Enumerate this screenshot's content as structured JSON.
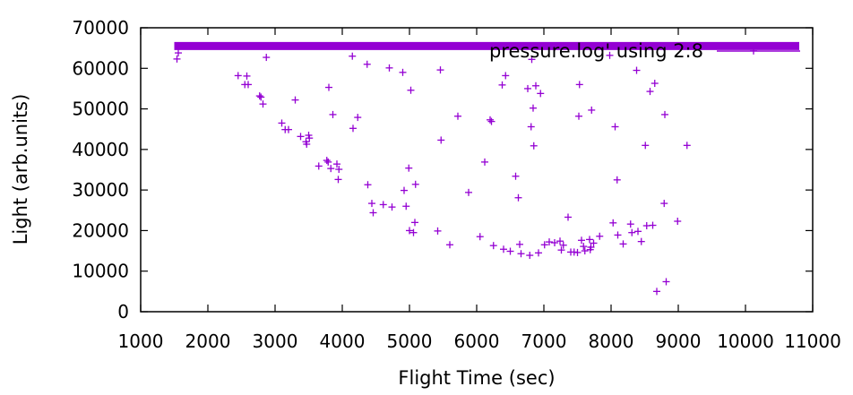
{
  "chart_data": {
    "type": "scatter",
    "xlabel": "Flight Time (sec)",
    "ylabel": "Light (arb.units)",
    "xlim": [
      1000,
      11000
    ],
    "ylim": [
      0,
      70000
    ],
    "xticks": [
      1000,
      2000,
      3000,
      4000,
      5000,
      6000,
      7000,
      8000,
      9000,
      10000,
      11000
    ],
    "yticks": [
      0,
      10000,
      20000,
      30000,
      40000,
      50000,
      60000,
      70000
    ],
    "grid": false,
    "legend_position": "top-right",
    "series": [
      {
        "name": "pressure.log' using 2:8",
        "color": "#9400d3",
        "marker": "plus",
        "saturation_line": {
          "y": 65500,
          "x_start": 1500,
          "x_end": 10800
        },
        "points": [
          [
            1540,
            62300
          ],
          [
            1560,
            63800
          ],
          [
            2450,
            58200
          ],
          [
            2550,
            56000
          ],
          [
            2580,
            58100
          ],
          [
            2600,
            56000
          ],
          [
            2770,
            53200
          ],
          [
            2790,
            52900
          ],
          [
            2820,
            51200
          ],
          [
            2870,
            62700
          ],
          [
            3100,
            46500
          ],
          [
            3150,
            44900
          ],
          [
            3200,
            44900
          ],
          [
            3300,
            52200
          ],
          [
            3380,
            43200
          ],
          [
            3460,
            41900
          ],
          [
            3470,
            41300
          ],
          [
            3500,
            43500
          ],
          [
            3510,
            42800
          ],
          [
            3650,
            35900
          ],
          [
            3770,
            37300
          ],
          [
            3790,
            36900
          ],
          [
            3800,
            55300
          ],
          [
            3830,
            35300
          ],
          [
            3860,
            48600
          ],
          [
            3920,
            36400
          ],
          [
            3940,
            32600
          ],
          [
            3950,
            35100
          ],
          [
            4150,
            63000
          ],
          [
            4160,
            45200
          ],
          [
            4230,
            47900
          ],
          [
            4370,
            61000
          ],
          [
            4380,
            31300
          ],
          [
            4440,
            26700
          ],
          [
            4460,
            24400
          ],
          [
            4610,
            26400
          ],
          [
            4700,
            60100
          ],
          [
            4740,
            25800
          ],
          [
            4900,
            59000
          ],
          [
            4920,
            29900
          ],
          [
            4950,
            26000
          ],
          [
            4990,
            35400
          ],
          [
            5000,
            20000
          ],
          [
            5020,
            54600
          ],
          [
            5060,
            19500
          ],
          [
            5080,
            22000
          ],
          [
            5090,
            31400
          ],
          [
            5420,
            19900
          ],
          [
            5470,
            42300
          ],
          [
            5460,
            59600
          ],
          [
            5600,
            16500
          ],
          [
            5720,
            48200
          ],
          [
            5880,
            29400
          ],
          [
            6050,
            18500
          ],
          [
            6120,
            36900
          ],
          [
            6200,
            47300
          ],
          [
            6220,
            46900
          ],
          [
            6250,
            16300
          ],
          [
            6380,
            55900
          ],
          [
            6400,
            15400
          ],
          [
            6430,
            58200
          ],
          [
            6500,
            14900
          ],
          [
            6580,
            33400
          ],
          [
            6620,
            28100
          ],
          [
            6640,
            16600
          ],
          [
            6660,
            14300
          ],
          [
            6760,
            55000
          ],
          [
            6790,
            13900
          ],
          [
            6810,
            45600
          ],
          [
            6820,
            62200
          ],
          [
            6840,
            50200
          ],
          [
            6850,
            40900
          ],
          [
            6880,
            55700
          ],
          [
            6920,
            14500
          ],
          [
            6950,
            53800
          ],
          [
            7010,
            16500
          ],
          [
            7080,
            17200
          ],
          [
            7160,
            17000
          ],
          [
            7240,
            17400
          ],
          [
            7260,
            15200
          ],
          [
            7290,
            16400
          ],
          [
            7360,
            23300
          ],
          [
            7400,
            14700
          ],
          [
            7450,
            14700
          ],
          [
            7500,
            14600
          ],
          [
            7520,
            48200
          ],
          [
            7530,
            56000
          ],
          [
            7560,
            17600
          ],
          [
            7590,
            16100
          ],
          [
            7610,
            15000
          ],
          [
            7680,
            17800
          ],
          [
            7690,
            15300
          ],
          [
            7700,
            15900
          ],
          [
            7710,
            49700
          ],
          [
            7740,
            16900
          ],
          [
            7830,
            18600
          ],
          [
            7980,
            63200
          ],
          [
            8030,
            21900
          ],
          [
            8060,
            45600
          ],
          [
            8090,
            32500
          ],
          [
            8100,
            18900
          ],
          [
            8180,
            16700
          ],
          [
            8290,
            21600
          ],
          [
            8310,
            19500
          ],
          [
            8380,
            59500
          ],
          [
            8400,
            19800
          ],
          [
            8450,
            17300
          ],
          [
            8510,
            41000
          ],
          [
            8530,
            21200
          ],
          [
            8580,
            54300
          ],
          [
            8620,
            21300
          ],
          [
            8650,
            56300
          ],
          [
            8680,
            5000
          ],
          [
            8790,
            26700
          ],
          [
            8800,
            48600
          ],
          [
            8820,
            7400
          ],
          [
            8990,
            22300
          ],
          [
            9130,
            41000
          ],
          [
            10120,
            64300
          ]
        ]
      }
    ]
  }
}
